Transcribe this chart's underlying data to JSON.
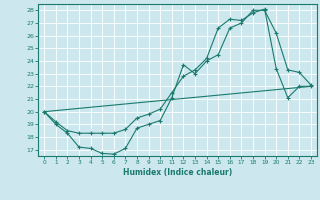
{
  "xlabel": "Humidex (Indice chaleur)",
  "bg_color": "#cce8ee",
  "grid_color": "#ffffff",
  "line_color": "#1a7a6e",
  "xlim": [
    -0.5,
    23.5
  ],
  "ylim": [
    16.5,
    28.5
  ],
  "xticks": [
    0,
    1,
    2,
    3,
    4,
    5,
    6,
    7,
    8,
    9,
    10,
    11,
    12,
    13,
    14,
    15,
    16,
    17,
    18,
    19,
    20,
    21,
    22,
    23
  ],
  "yticks": [
    17,
    18,
    19,
    20,
    21,
    22,
    23,
    24,
    25,
    26,
    27,
    28
  ],
  "line1_x": [
    0,
    1,
    2,
    3,
    4,
    5,
    6,
    7,
    8,
    9,
    10,
    11,
    12,
    13,
    14,
    15,
    16,
    17,
    18,
    19,
    20,
    21,
    22,
    23
  ],
  "line1_y": [
    20.0,
    19.0,
    18.3,
    17.2,
    17.1,
    16.7,
    16.65,
    17.1,
    18.7,
    19.0,
    19.3,
    21.1,
    23.7,
    23.0,
    24.0,
    24.5,
    26.6,
    27.0,
    28.0,
    28.0,
    26.2,
    23.3,
    23.1,
    22.1
  ],
  "line2_x": [
    0,
    1,
    2,
    3,
    4,
    5,
    6,
    7,
    8,
    9,
    10,
    11,
    12,
    13,
    14,
    15,
    16,
    17,
    18,
    19,
    20,
    21,
    22,
    23
  ],
  "line2_y": [
    20.0,
    19.2,
    18.5,
    18.3,
    18.3,
    18.3,
    18.3,
    18.6,
    19.5,
    19.8,
    20.2,
    21.5,
    22.8,
    23.3,
    24.2,
    26.6,
    27.3,
    27.2,
    27.8,
    28.1,
    23.4,
    21.1,
    22.0,
    22.0
  ],
  "line3_x": [
    0,
    23
  ],
  "line3_y": [
    20.0,
    22.0
  ]
}
